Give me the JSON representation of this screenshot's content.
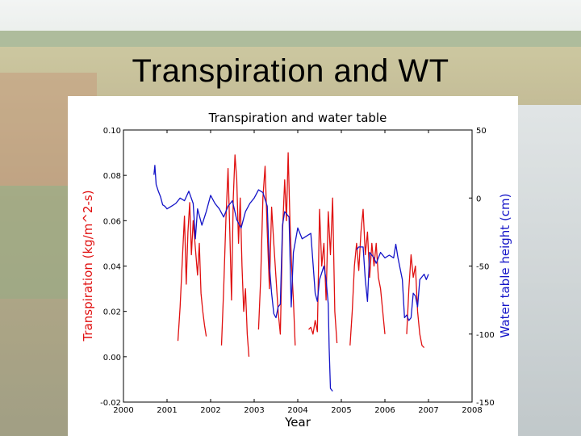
{
  "slide": {
    "title": "Transpiration and WT"
  },
  "colors": {
    "transpiration": "#e01010",
    "water_table": "#1414c8"
  },
  "chart_data": {
    "type": "line",
    "title": "Transpiration and water table",
    "xlabel": "Year",
    "ylabel": "Transpiration (kg/m^2-s)",
    "y2label": "Water table height (cm)",
    "xlim": [
      2000,
      2008
    ],
    "ylim": [
      -0.02,
      0.1
    ],
    "y2lim": [
      -150,
      50
    ],
    "x_ticks": [
      "2000",
      "2001",
      "2002",
      "2003",
      "2004",
      "2005",
      "2006",
      "2007",
      "2008"
    ],
    "y_ticks": [
      "-0.02",
      "0.00",
      "0.02",
      "0.04",
      "0.06",
      "0.08",
      "0.10"
    ],
    "y2_ticks": [
      "-150",
      "-100",
      "-50",
      "0",
      "50"
    ],
    "series": [
      {
        "name": "Transpiration",
        "axis": "left",
        "segments": [
          [
            [
              2001.25,
              0.007
            ],
            [
              2001.3,
              0.022
            ],
            [
              2001.36,
              0.046
            ],
            [
              2001.4,
              0.062
            ],
            [
              2001.44,
              0.032
            ],
            [
              2001.48,
              0.055
            ],
            [
              2001.52,
              0.068
            ],
            [
              2001.56,
              0.045
            ],
            [
              2001.6,
              0.06
            ],
            [
              2001.65,
              0.048
            ],
            [
              2001.7,
              0.036
            ],
            [
              2001.74,
              0.05
            ],
            [
              2001.78,
              0.028
            ],
            [
              2001.82,
              0.02
            ],
            [
              2001.86,
              0.014
            ],
            [
              2001.9,
              0.009
            ]
          ],
          [
            [
              2002.25,
              0.005
            ],
            [
              2002.3,
              0.03
            ],
            [
              2002.35,
              0.06
            ],
            [
              2002.4,
              0.083
            ],
            [
              2002.44,
              0.055
            ],
            [
              2002.48,
              0.025
            ],
            [
              2002.52,
              0.07
            ],
            [
              2002.56,
              0.089
            ],
            [
              2002.6,
              0.078
            ],
            [
              2002.64,
              0.05
            ],
            [
              2002.68,
              0.07
            ],
            [
              2002.72,
              0.04
            ],
            [
              2002.76,
              0.02
            ],
            [
              2002.8,
              0.03
            ],
            [
              2002.84,
              0.01
            ],
            [
              2002.88,
              0.0
            ]
          ],
          [
            [
              2003.1,
              0.012
            ],
            [
              2003.15,
              0.035
            ],
            [
              2003.2,
              0.07
            ],
            [
              2003.25,
              0.084
            ],
            [
              2003.3,
              0.055
            ],
            [
              2003.35,
              0.03
            ],
            [
              2003.4,
              0.066
            ],
            [
              2003.45,
              0.05
            ],
            [
              2003.5,
              0.035
            ],
            [
              2003.55,
              0.02
            ],
            [
              2003.6,
              0.01
            ],
            [
              2003.65,
              0.055
            ],
            [
              2003.7,
              0.078
            ],
            [
              2003.74,
              0.06
            ],
            [
              2003.78,
              0.09
            ],
            [
              2003.82,
              0.06
            ],
            [
              2003.86,
              0.04
            ],
            [
              2003.9,
              0.025
            ],
            [
              2003.94,
              0.005
            ]
          ],
          [
            [
              2004.25,
              0.012
            ],
            [
              2004.3,
              0.013
            ],
            [
              2004.35,
              0.01
            ],
            [
              2004.4,
              0.016
            ],
            [
              2004.45,
              0.011
            ],
            [
              2004.5,
              0.065
            ],
            [
              2004.55,
              0.04
            ],
            [
              2004.6,
              0.05
            ],
            [
              2004.65,
              0.025
            ],
            [
              2004.7,
              0.064
            ],
            [
              2004.75,
              0.045
            ],
            [
              2004.8,
              0.07
            ],
            [
              2004.85,
              0.02
            ],
            [
              2004.9,
              0.006
            ]
          ],
          [
            [
              2005.2,
              0.005
            ],
            [
              2005.25,
              0.02
            ],
            [
              2005.3,
              0.04
            ],
            [
              2005.35,
              0.05
            ],
            [
              2005.4,
              0.038
            ],
            [
              2005.45,
              0.055
            ],
            [
              2005.5,
              0.065
            ],
            [
              2005.55,
              0.045
            ],
            [
              2005.6,
              0.055
            ],
            [
              2005.65,
              0.035
            ],
            [
              2005.7,
              0.05
            ],
            [
              2005.75,
              0.04
            ],
            [
              2005.8,
              0.05
            ],
            [
              2005.85,
              0.035
            ],
            [
              2005.9,
              0.03
            ],
            [
              2005.95,
              0.02
            ],
            [
              2006.0,
              0.01
            ]
          ],
          [
            [
              2006.5,
              0.01
            ],
            [
              2006.55,
              0.03
            ],
            [
              2006.6,
              0.045
            ],
            [
              2006.65,
              0.035
            ],
            [
              2006.7,
              0.04
            ],
            [
              2006.75,
              0.02
            ],
            [
              2006.8,
              0.01
            ],
            [
              2006.85,
              0.005
            ],
            [
              2006.9,
              0.004
            ]
          ]
        ]
      },
      {
        "name": "Water table",
        "axis": "right",
        "segments": [
          [
            [
              2000.7,
              17
            ],
            [
              2000.72,
              24
            ],
            [
              2000.75,
              10
            ],
            [
              2000.8,
              5
            ],
            [
              2000.85,
              1
            ],
            [
              2000.9,
              -5
            ],
            [
              2000.95,
              -6
            ],
            [
              2001.0,
              -8
            ],
            [
              2001.1,
              -6
            ],
            [
              2001.2,
              -4
            ],
            [
              2001.3,
              0
            ],
            [
              2001.4,
              -2
            ],
            [
              2001.5,
              5
            ],
            [
              2001.6,
              -4
            ],
            [
              2001.65,
              -30
            ],
            [
              2001.7,
              -8
            ],
            [
              2001.8,
              -20
            ],
            [
              2001.9,
              -10
            ],
            [
              2002.0,
              2
            ],
            [
              2002.1,
              -4
            ],
            [
              2002.2,
              -8
            ],
            [
              2002.3,
              -14
            ],
            [
              2002.4,
              -6
            ],
            [
              2002.5,
              -2
            ],
            [
              2002.6,
              -16
            ],
            [
              2002.7,
              -22
            ],
            [
              2002.8,
              -10
            ],
            [
              2002.9,
              -4
            ],
            [
              2003.0,
              0
            ],
            [
              2003.1,
              6
            ],
            [
              2003.2,
              4
            ],
            [
              2003.3,
              -6
            ],
            [
              2003.35,
              -50
            ],
            [
              2003.4,
              -70
            ],
            [
              2003.45,
              -85
            ],
            [
              2003.5,
              -88
            ],
            [
              2003.55,
              -80
            ],
            [
              2003.6,
              -78
            ],
            [
              2003.65,
              -20
            ],
            [
              2003.7,
              -10
            ],
            [
              2003.8,
              -14
            ],
            [
              2003.85,
              -80
            ],
            [
              2003.9,
              -40
            ],
            [
              2004.0,
              -22
            ],
            [
              2004.1,
              -30
            ],
            [
              2004.2,
              -28
            ],
            [
              2004.3,
              -26
            ],
            [
              2004.35,
              -48
            ],
            [
              2004.4,
              -70
            ],
            [
              2004.45,
              -76
            ],
            [
              2004.5,
              -60
            ],
            [
              2004.6,
              -50
            ],
            [
              2004.65,
              -60
            ],
            [
              2004.7,
              -78
            ],
            [
              2004.72,
              -110
            ],
            [
              2004.75,
              -140
            ],
            [
              2004.8,
              -142
            ]
          ],
          [
            [
              2005.35,
              -38
            ],
            [
              2005.4,
              -36
            ],
            [
              2005.5,
              -36
            ],
            [
              2005.55,
              -60
            ],
            [
              2005.6,
              -76
            ],
            [
              2005.65,
              -40
            ],
            [
              2005.75,
              -44
            ],
            [
              2005.8,
              -48
            ],
            [
              2005.9,
              -40
            ],
            [
              2006.0,
              -44
            ],
            [
              2006.1,
              -42
            ],
            [
              2006.2,
              -44
            ],
            [
              2006.25,
              -34
            ],
            [
              2006.3,
              -44
            ],
            [
              2006.35,
              -52
            ],
            [
              2006.4,
              -60
            ],
            [
              2006.45,
              -88
            ],
            [
              2006.5,
              -86
            ],
            [
              2006.55,
              -90
            ],
            [
              2006.6,
              -88
            ],
            [
              2006.65,
              -70
            ],
            [
              2006.7,
              -72
            ],
            [
              2006.75,
              -80
            ],
            [
              2006.8,
              -60
            ],
            [
              2006.85,
              -58
            ],
            [
              2006.9,
              -56
            ],
            [
              2006.95,
              -60
            ],
            [
              2007.0,
              -56
            ]
          ]
        ]
      }
    ]
  }
}
